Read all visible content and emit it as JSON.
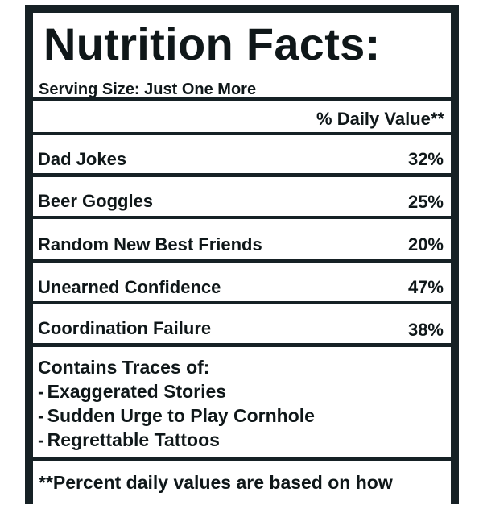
{
  "label": {
    "title": "Nutrition Facts:",
    "serving_size": "Serving Size: Just One More",
    "daily_value_header": "% Daily Value**",
    "rows": [
      {
        "name": "Dad Jokes",
        "value": "32%"
      },
      {
        "name": "Beer Goggles",
        "value": "25%"
      },
      {
        "name": "Random New Best Friends",
        "value": "20%"
      },
      {
        "name": "Unearned Confidence",
        "value": "47%"
      },
      {
        "name": "Coordination Failure",
        "value": "38%"
      }
    ],
    "traces_title": "Contains Traces of:",
    "traces": [
      "Exaggerated Stories",
      "Sudden Urge to Play Cornhole",
      "Regrettable Tattoos"
    ],
    "trace_bullet": "-",
    "footnote": "**Percent daily values are based on how"
  },
  "colors": {
    "border": "#162125",
    "text": "#0f1719",
    "background": "#ffffff"
  }
}
